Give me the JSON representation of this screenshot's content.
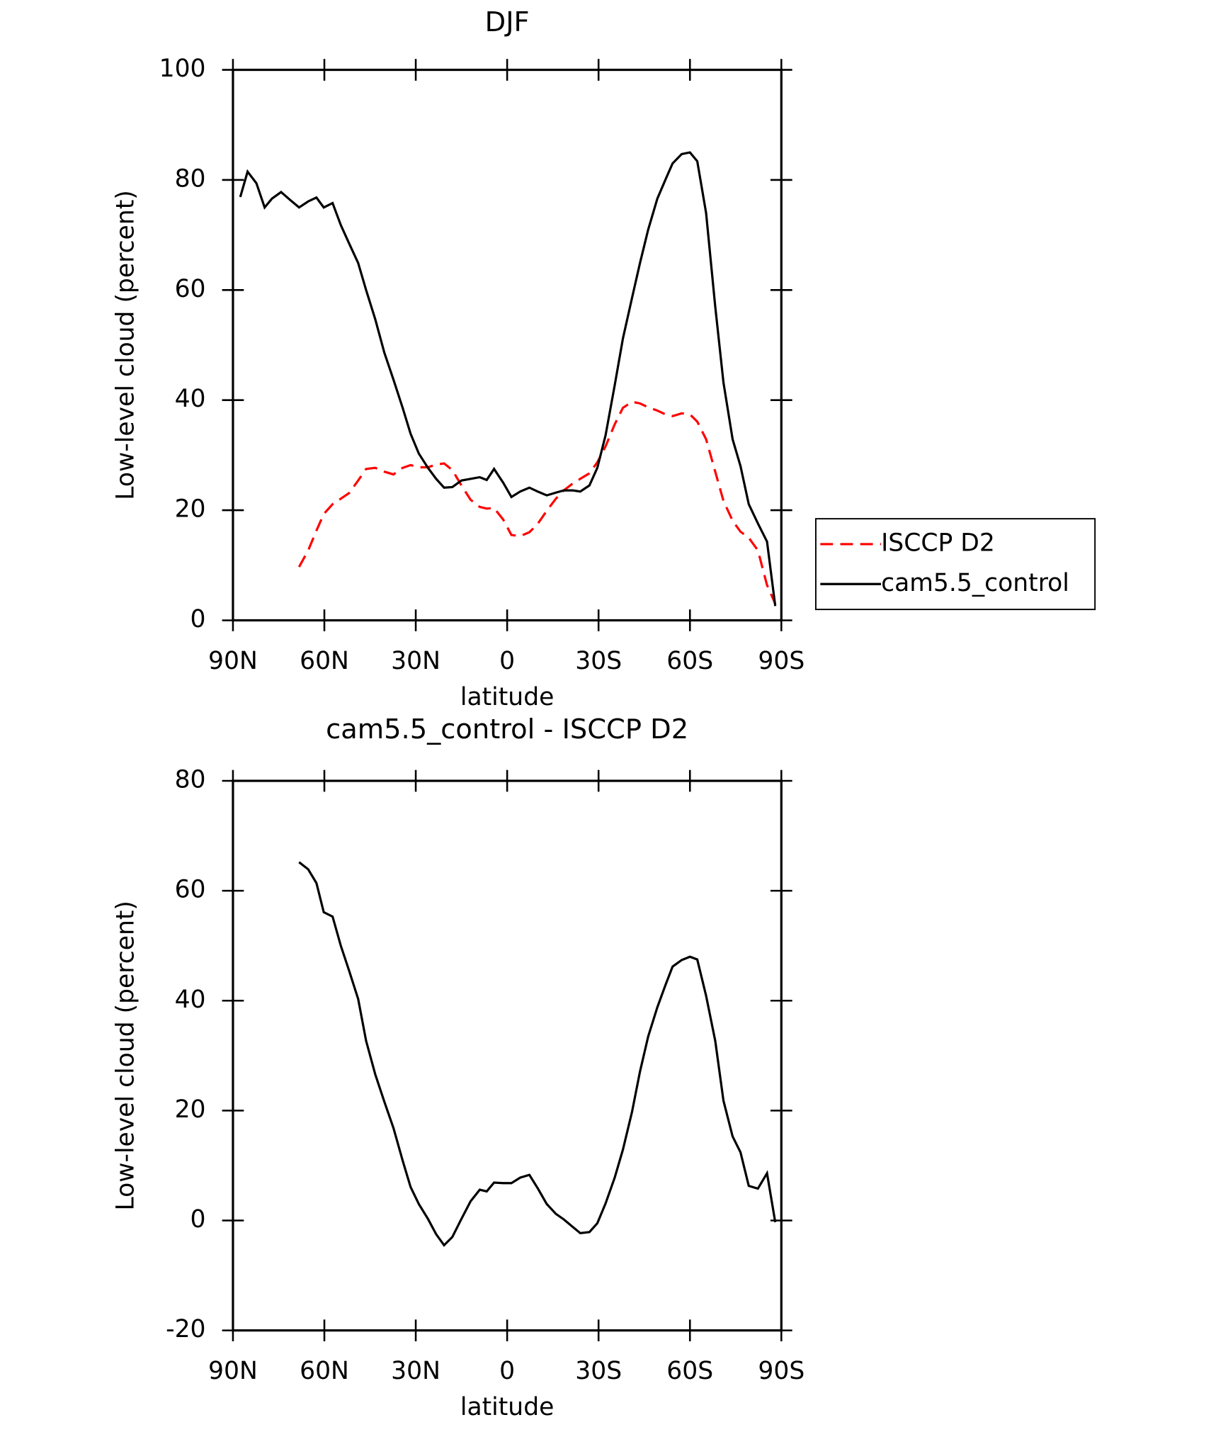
{
  "chart_data": [
    {
      "type": "line",
      "title": "DJF",
      "xlabel": "latitude",
      "ylabel": "Low-level cloud (percent)",
      "xlim": [
        90,
        -90
      ],
      "xticks": [
        {
          "value": 90,
          "label": "90N"
        },
        {
          "value": 60,
          "label": "60N"
        },
        {
          "value": 30,
          "label": "30N"
        },
        0,
        {
          "value": -30,
          "label": "30S"
        },
        {
          "value": -60,
          "label": "60S"
        },
        {
          "value": -90,
          "label": "90S"
        }
      ],
      "ylim": [
        0,
        100
      ],
      "yticks": [
        0,
        20,
        40,
        60,
        80,
        100
      ],
      "legend": "outside-right",
      "series": [
        {
          "name": "ISCCP D2",
          "color": "#ff0000",
          "linestyle": "dashed",
          "x": [
            68.3,
            65.3,
            62.6,
            60.2,
            57.3,
            54.6,
            51.9,
            48.9,
            46.3,
            43.3,
            40.3,
            37.3,
            34.3,
            31.7,
            29,
            26,
            23.3,
            20.7,
            18,
            15,
            12,
            9,
            6.7,
            4.3,
            1.3,
            -1.4,
            -4.3,
            -7.3,
            -10,
            -13,
            -16,
            -18.6,
            -21.6,
            -24,
            -27,
            -29.6,
            -32.3,
            -35.3,
            -38,
            -41,
            -43.6,
            -46.3,
            -49.3,
            -52,
            -54.3,
            -57.3,
            -60,
            -62.4,
            -65.3,
            -68.3,
            -71,
            -74,
            -76.6,
            -79.3,
            -82.3,
            -85.3,
            -88
          ],
          "values": [
            9.7,
            12.7,
            16.3,
            19.3,
            21.1,
            22.1,
            23.1,
            25.4,
            27.5,
            27.7,
            27,
            26.5,
            27.7,
            28.2,
            27.8,
            27.8,
            28.3,
            28.5,
            27.3,
            24.5,
            21.9,
            20.6,
            20.3,
            20.4,
            18.3,
            15.5,
            15.3,
            16,
            17.5,
            19.9,
            22.1,
            23.6,
            24.9,
            25.7,
            26.7,
            28.7,
            31.6,
            35.6,
            38.6,
            39.7,
            39.4,
            38.7,
            38.1,
            37.4,
            37.1,
            37.6,
            37.4,
            36.1,
            32.9,
            27,
            21.7,
            18.1,
            16.1,
            15,
            12.7,
            6.4,
            3
          ]
        },
        {
          "name": "cam5.5_control",
          "color": "#000000",
          "linestyle": "solid",
          "x": [
            87.6,
            85.2,
            82.3,
            79.6,
            77.2,
            74.2,
            71.3,
            68.3,
            65.3,
            62.6,
            60.2,
            57.3,
            54.6,
            51.9,
            48.9,
            46.3,
            43.3,
            40.3,
            37.3,
            34.3,
            31.7,
            29,
            26,
            23.3,
            20.7,
            18,
            15,
            12,
            9,
            6.7,
            4.3,
            1.3,
            -1.4,
            -4.3,
            -7.3,
            -10,
            -13,
            -16,
            -18.6,
            -21.6,
            -24,
            -27,
            -29.6,
            -32.3,
            -35.3,
            -38,
            -41,
            -43.6,
            -46.3,
            -49.3,
            -52,
            -54.3,
            -57.3,
            -60,
            -62.4,
            -65.3,
            -68.3,
            -71,
            -74,
            -76.6,
            -79.3,
            -82.3,
            -85.3,
            -88
          ],
          "values": [
            76.9,
            81.5,
            79.4,
            75,
            76.6,
            77.8,
            76.4,
            75,
            76.1,
            76.8,
            75,
            75.8,
            71.8,
            68.5,
            64.9,
            60,
            54.7,
            48.6,
            43.7,
            38.6,
            33.9,
            30.3,
            27.7,
            25.7,
            24.1,
            24.2,
            25.4,
            25.7,
            26,
            25.5,
            27.5,
            25,
            22.4,
            23.4,
            24.1,
            23.4,
            22.7,
            23.2,
            23.6,
            23.6,
            23.4,
            24.5,
            27.7,
            33.6,
            42.7,
            51.2,
            58.6,
            64.9,
            71,
            76.6,
            80.1,
            83,
            84.7,
            85,
            83.4,
            74,
            57,
            43.2,
            32.9,
            28,
            21.1,
            17.6,
            14.3,
            2.6
          ]
        }
      ]
    },
    {
      "type": "line",
      "title": "cam5.5_control - ISCCP D2",
      "xlabel": "latitude",
      "ylabel": "Low-level cloud (percent)",
      "xlim": [
        90,
        -90
      ],
      "xticks": [
        {
          "value": 90,
          "label": "90N"
        },
        {
          "value": 60,
          "label": "60N"
        },
        {
          "value": 30,
          "label": "30N"
        },
        0,
        {
          "value": -30,
          "label": "30S"
        },
        {
          "value": -60,
          "label": "60S"
        },
        {
          "value": -90,
          "label": "90S"
        }
      ],
      "ylim": [
        -20,
        80
      ],
      "yticks": [
        -20,
        0,
        20,
        40,
        60,
        80
      ],
      "series": [
        {
          "color": "#000000",
          "linestyle": "solid",
          "x": [
            68.3,
            65.3,
            62.6,
            60.2,
            57.3,
            54.6,
            51.9,
            48.9,
            46.3,
            43.3,
            40.3,
            37.3,
            34.3,
            31.7,
            29,
            26,
            23.3,
            20.7,
            18,
            15,
            12,
            9,
            6.7,
            4.3,
            1.3,
            -1.4,
            -4.3,
            -7.3,
            -10,
            -13,
            -16,
            -18.6,
            -21.6,
            -24,
            -27,
            -29.6,
            -32.3,
            -35.3,
            -38,
            -41,
            -43.6,
            -46.3,
            -49.3,
            -52,
            -54.3,
            -57.3,
            -60,
            -62.4,
            -65.3,
            -68.3,
            -71,
            -74,
            -76.6,
            -79.3,
            -82.3,
            -85.3,
            -88
          ],
          "values": [
            65.2,
            63.9,
            61.4,
            56.1,
            55.3,
            50,
            45.5,
            40.3,
            32.7,
            26.6,
            21.6,
            16.8,
            10.9,
            6.1,
            3,
            0.3,
            -2.5,
            -4.5,
            -3,
            0.3,
            3.5,
            5.6,
            5.3,
            6.9,
            6.8,
            6.8,
            7.8,
            8.3,
            5.9,
            3,
            1.2,
            0.2,
            -1.2,
            -2.3,
            -2.1,
            -0.5,
            3.1,
            7.8,
            12.9,
            19.8,
            27.1,
            33.5,
            38.8,
            42.9,
            46.2,
            47.4,
            48,
            47.5,
            40.9,
            32.7,
            21.8,
            15.3,
            12.4,
            6.3,
            5.8,
            8.6,
            -0.3
          ]
        }
      ]
    }
  ]
}
